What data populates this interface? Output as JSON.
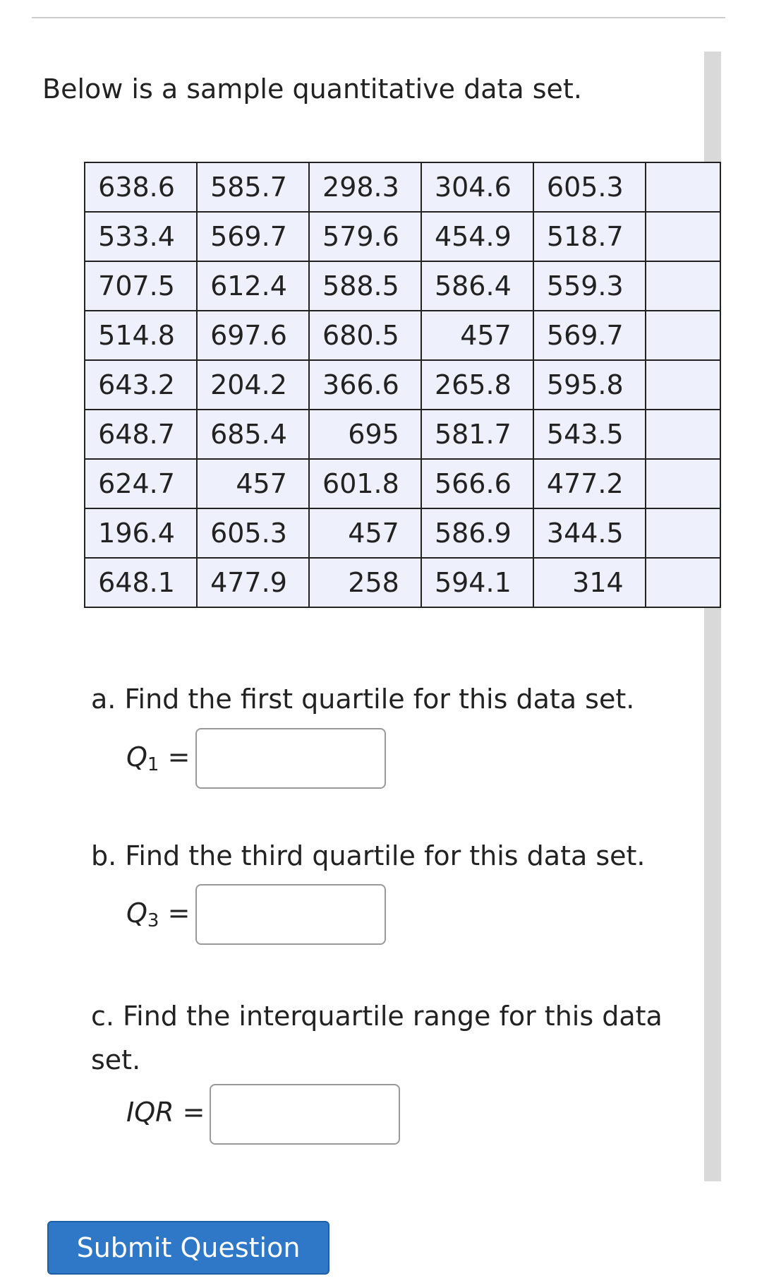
{
  "intro": "Below is a sample quantitative data set.",
  "table": {
    "rows": [
      [
        638.6,
        585.7,
        298.3,
        304.6,
        605.3
      ],
      [
        533.4,
        569.7,
        579.6,
        454.9,
        518.7
      ],
      [
        707.5,
        612.4,
        588.5,
        586.4,
        559.3
      ],
      [
        514.8,
        697.6,
        680.5,
        457,
        569.7
      ],
      [
        643.2,
        204.2,
        366.6,
        265.8,
        595.8
      ],
      [
        648.7,
        685.4,
        695,
        581.7,
        543.5
      ],
      [
        624.7,
        457,
        601.8,
        566.6,
        477.2
      ],
      [
        196.4,
        605.3,
        457,
        586.9,
        344.5
      ],
      [
        648.1,
        477.9,
        258,
        594.1,
        314
      ]
    ]
  },
  "questions": [
    {
      "text": "a. Find the first quartile for this data set.",
      "var": "Q",
      "sub": "1",
      "eq": "="
    },
    {
      "text": "b. Find the third quartile for this data set.",
      "var": "Q",
      "sub": "3",
      "eq": "="
    },
    {
      "text": "c. Find the interquartile range for this data set.",
      "var": "IQR",
      "eq": "="
    }
  ],
  "button": "Submit Question"
}
